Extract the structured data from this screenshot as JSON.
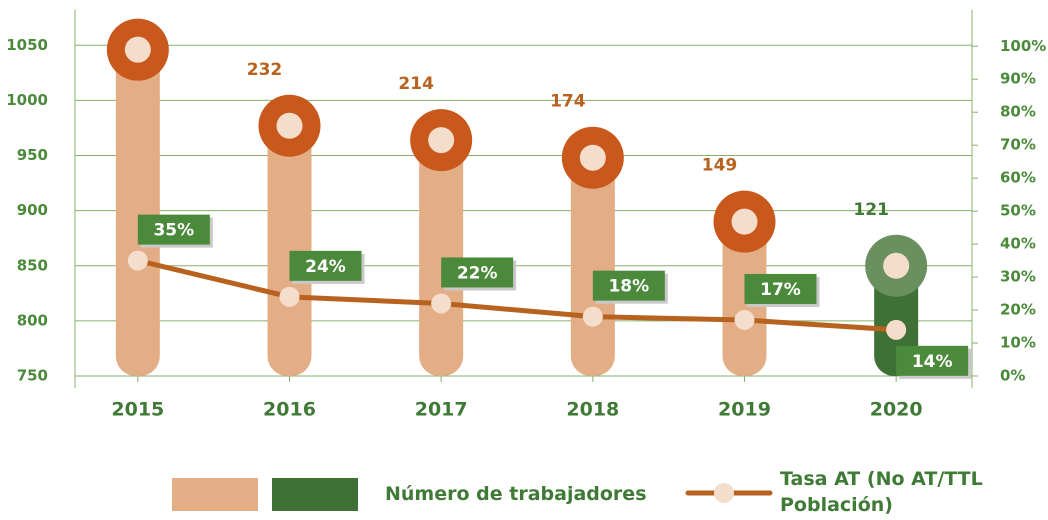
{
  "chart_data": {
    "type": "bar_line",
    "categories": [
      "2015",
      "2016",
      "2017",
      "2018",
      "2019",
      "2020"
    ],
    "series": [
      {
        "name": "Número de trabajadores",
        "type": "bar",
        "colors": [
          "#e3ad85",
          "#e3ad85",
          "#e3ad85",
          "#e3ad85",
          "#e3ad85",
          "#3f7036"
        ],
        "marker_colors": [
          "#c9581c",
          "#c9581c",
          "#c9581c",
          "#c9581c",
          "#c9581c",
          "#6b9060"
        ],
        "values": [
          1046,
          977,
          964,
          948,
          890,
          850
        ]
      },
      {
        "name": "Tasa AT (No AT/TTL Población)",
        "type": "line",
        "axis": "y2",
        "color": "#b8621f",
        "values": [
          35,
          24,
          22,
          18,
          17,
          14
        ],
        "value_labels": [
          "35%",
          "24%",
          "22%",
          "18%",
          "17%",
          "14%"
        ]
      }
    ],
    "annotations": [
      "232",
      "214",
      "174",
      "149",
      "121"
    ],
    "annotation_colors": [
      "#b8621f",
      "#b8621f",
      "#b8621f",
      "#b8621f",
      "#3f7a36"
    ],
    "ylim": [
      750,
      1082
    ],
    "yticks": [
      750,
      800,
      850,
      900,
      950,
      1000,
      1050
    ],
    "y2lim": [
      0,
      111
    ],
    "y2ticks": [
      {
        "value": 0,
        "label": "0%"
      },
      {
        "value": 10,
        "label": "10%"
      },
      {
        "value": 20,
        "label": "20%"
      },
      {
        "value": 30,
        "label": "30%"
      },
      {
        "value": 40,
        "label": "40%"
      },
      {
        "value": 50,
        "label": "50%"
      },
      {
        "value": 60,
        "label": "60%"
      },
      {
        "value": 70,
        "label": "70%"
      },
      {
        "value": 80,
        "label": "80%"
      },
      {
        "value": 90,
        "label": "90%"
      },
      {
        "value": 100,
        "label": "100%"
      }
    ],
    "grid": true
  }
}
